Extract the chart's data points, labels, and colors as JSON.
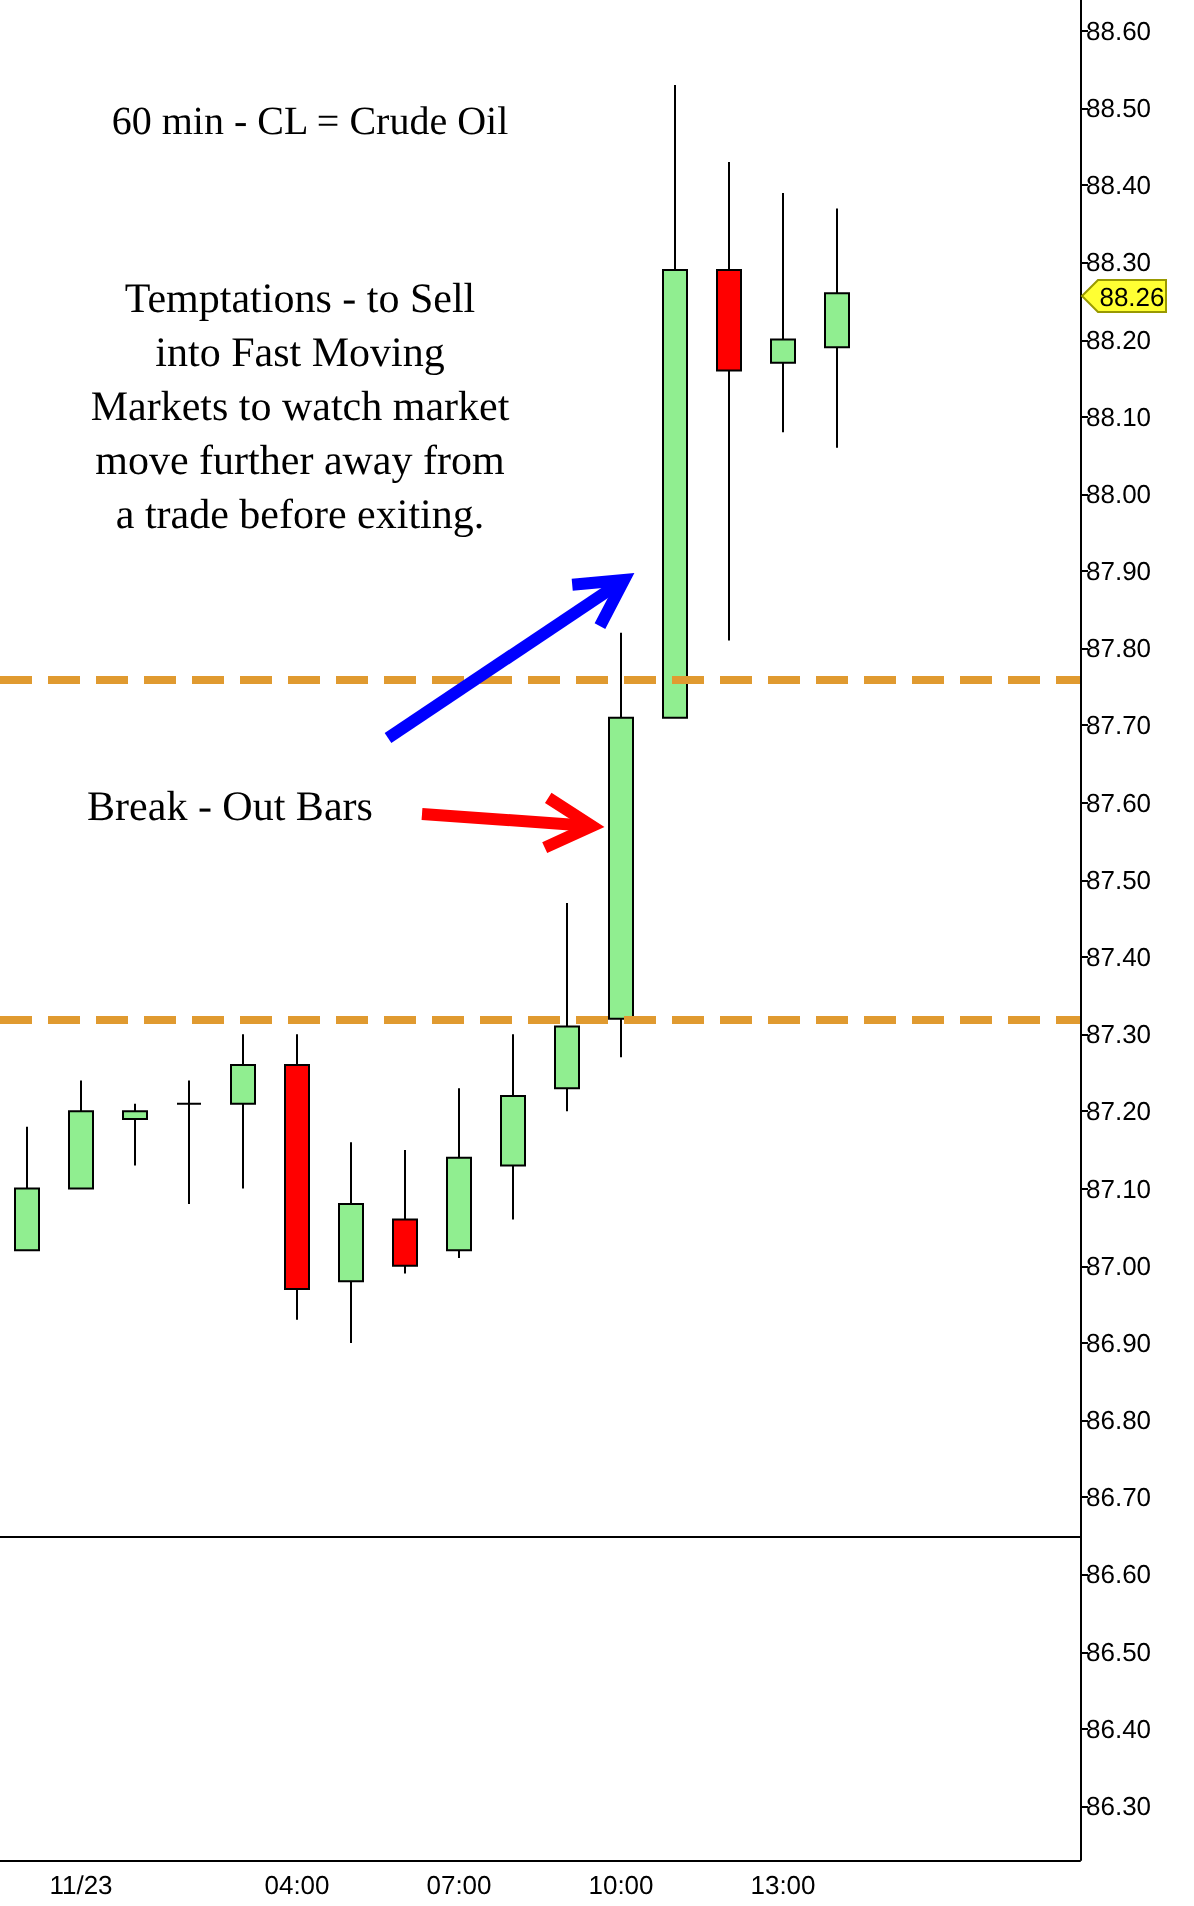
{
  "chart_data": {
    "type": "candlestick",
    "title": "60 min - CL = Crude Oil",
    "categories": [
      null,
      "11/23",
      null,
      null,
      null,
      "04:00",
      null,
      null,
      "07:00",
      null,
      null,
      "10:00",
      null,
      null,
      "13:00",
      null,
      null,
      null,
      null,
      null
    ],
    "ohlc": [
      [
        87.02,
        87.18,
        87.02,
        87.1
      ],
      [
        87.1,
        87.24,
        87.1,
        87.2
      ],
      [
        87.19,
        87.21,
        87.13,
        87.2
      ],
      [
        87.21,
        87.24,
        87.08,
        87.21
      ],
      [
        87.21,
        87.3,
        87.1,
        87.26
      ],
      [
        87.26,
        87.3,
        86.93,
        86.97
      ],
      [
        86.98,
        87.16,
        86.9,
        87.08
      ],
      [
        87.06,
        87.15,
        86.99,
        87.0
      ],
      [
        87.02,
        87.23,
        87.01,
        87.14
      ],
      [
        87.13,
        87.3,
        87.06,
        87.22
      ],
      [
        87.23,
        87.47,
        87.2,
        87.31
      ],
      [
        87.32,
        87.82,
        87.27,
        87.71
      ],
      [
        87.71,
        88.53,
        87.71,
        88.29
      ],
      [
        88.29,
        88.43,
        87.81,
        88.16
      ],
      [
        88.17,
        88.39,
        88.08,
        88.2
      ],
      [
        88.19,
        88.37,
        88.06,
        88.26
      ],
      null,
      null,
      null,
      null
    ],
    "colors": [
      "#90ee90",
      "#90ee90",
      "#90ee90",
      "#000000",
      "#90ee90",
      "#ff0000",
      "#90ee90",
      "#ff0000",
      "#90ee90",
      "#90ee90",
      "#90ee90",
      "#90ee90",
      "#90ee90",
      "#ff0000",
      "#90ee90",
      "#90ee90",
      null,
      null,
      null,
      null
    ],
    "ylim": [
      86.23,
      88.64
    ],
    "yticks": [
      {
        "value": 86.3,
        "label": "86.30"
      },
      {
        "value": 86.4,
        "label": "86.40"
      },
      {
        "value": 86.5,
        "label": "86.50"
      },
      {
        "value": 86.6,
        "label": "86.60"
      },
      {
        "value": 86.7,
        "label": "86.70"
      },
      {
        "value": 86.8,
        "label": "86.80"
      },
      {
        "value": 86.9,
        "label": "86.90"
      },
      {
        "value": 87.0,
        "label": "87.00"
      },
      {
        "value": 87.1,
        "label": "87.10"
      },
      {
        "value": 87.2,
        "label": "87.20"
      },
      {
        "value": 87.3,
        "label": "87.30"
      },
      {
        "value": 87.4,
        "label": "87.40"
      },
      {
        "value": 87.5,
        "label": "87.50"
      },
      {
        "value": 87.6,
        "label": "87.60"
      },
      {
        "value": 87.7,
        "label": "87.70"
      },
      {
        "value": 87.8,
        "label": "87.80"
      },
      {
        "value": 87.9,
        "label": "87.90"
      },
      {
        "value": 88.0,
        "label": "88.00"
      },
      {
        "value": 88.1,
        "label": "88.10"
      },
      {
        "value": 88.2,
        "label": "88.20"
      },
      {
        "value": 88.3,
        "label": "88.30"
      },
      {
        "value": 88.4,
        "label": "88.40"
      },
      {
        "value": 88.5,
        "label": "88.50"
      },
      {
        "value": 88.6,
        "label": "88.60"
      }
    ],
    "ref_lines": [
      {
        "axis": "y",
        "value": 87.32,
        "color": "#e09a30",
        "line_style": "dashed"
      },
      {
        "axis": "y",
        "value": 87.76,
        "color": "#e09a30",
        "line_style": "dashed"
      },
      {
        "axis": "y",
        "value": 86.65,
        "color": "#000000",
        "line_style": "solid"
      }
    ],
    "annotations": [
      "Temptations - to Sell into Fast Moving Markets to watch market move further away from a trade before exiting.",
      "Break - Out Bars",
      "88.26"
    ],
    "grid": false
  }
}
